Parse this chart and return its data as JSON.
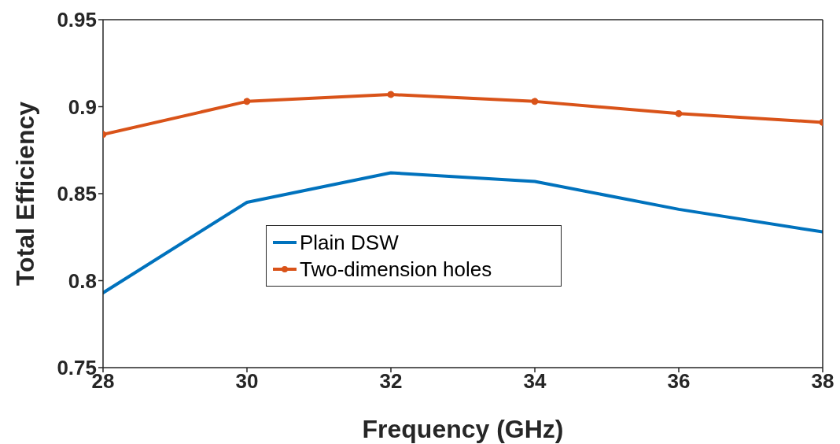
{
  "chart_data": {
    "type": "line",
    "xlabel": "Frequency (GHz)",
    "ylabel": "Total Efficiency",
    "x": [
      28,
      30,
      32,
      34,
      36,
      38
    ],
    "series": [
      {
        "name": "Plain DSW",
        "color": "#0072bd",
        "marker": "none",
        "values": [
          0.793,
          0.845,
          0.862,
          0.857,
          0.841,
          0.828
        ]
      },
      {
        "name": "Two-dimension holes",
        "color": "#d95319",
        "marker": "circle",
        "values": [
          0.884,
          0.903,
          0.907,
          0.903,
          0.896,
          0.891
        ]
      }
    ],
    "xlim": [
      28,
      38
    ],
    "xticks": [
      28,
      30,
      32,
      34,
      36,
      38
    ],
    "ylim": [
      0.75,
      0.95
    ],
    "yticks": [
      0.75,
      0.8,
      0.85,
      0.9,
      0.95
    ],
    "grid": false,
    "legend": "center",
    "line_style": "solid"
  }
}
